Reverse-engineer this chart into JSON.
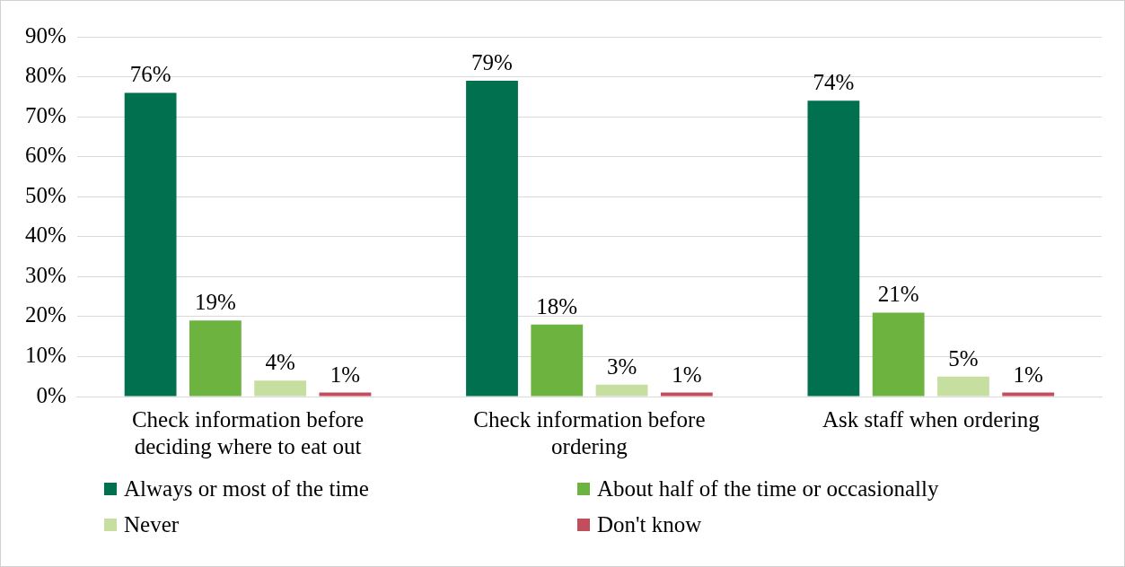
{
  "chart_data": {
    "type": "bar",
    "categories": [
      "Check information before deciding where to eat out",
      "Check information before ordering",
      "Ask staff when ordering"
    ],
    "series": [
      {
        "name": "Always or most of the time",
        "color": "#00704f",
        "values": [
          76,
          79,
          74
        ],
        "value_labels": [
          "76%",
          "79%",
          "74%"
        ]
      },
      {
        "name": "About half of the time or occasionally",
        "color": "#6cb33f",
        "values": [
          19,
          18,
          21
        ],
        "value_labels": [
          "19%",
          "18%",
          "21%"
        ]
      },
      {
        "name": "Never",
        "color": "#c6dfa0",
        "values": [
          4,
          3,
          5
        ],
        "value_labels": [
          "4%",
          "3%",
          "5%"
        ]
      },
      {
        "name": "Don't know",
        "color": "#c24d5c",
        "values": [
          1,
          1,
          1
        ],
        "value_labels": [
          "1%",
          "1%",
          "1%"
        ]
      }
    ],
    "ylim": [
      0,
      90
    ],
    "yticks": [
      {
        "value": 0,
        "label": "0%"
      },
      {
        "value": 10,
        "label": "10%"
      },
      {
        "value": 20,
        "label": "20%"
      },
      {
        "value": 30,
        "label": "30%"
      },
      {
        "value": 40,
        "label": "40%"
      },
      {
        "value": 50,
        "label": "50%"
      },
      {
        "value": 60,
        "label": "60%"
      },
      {
        "value": 70,
        "label": "70%"
      },
      {
        "value": 80,
        "label": "80%"
      },
      {
        "value": 90,
        "label": "90%"
      }
    ],
    "grid": "y",
    "legend": "bottom"
  }
}
